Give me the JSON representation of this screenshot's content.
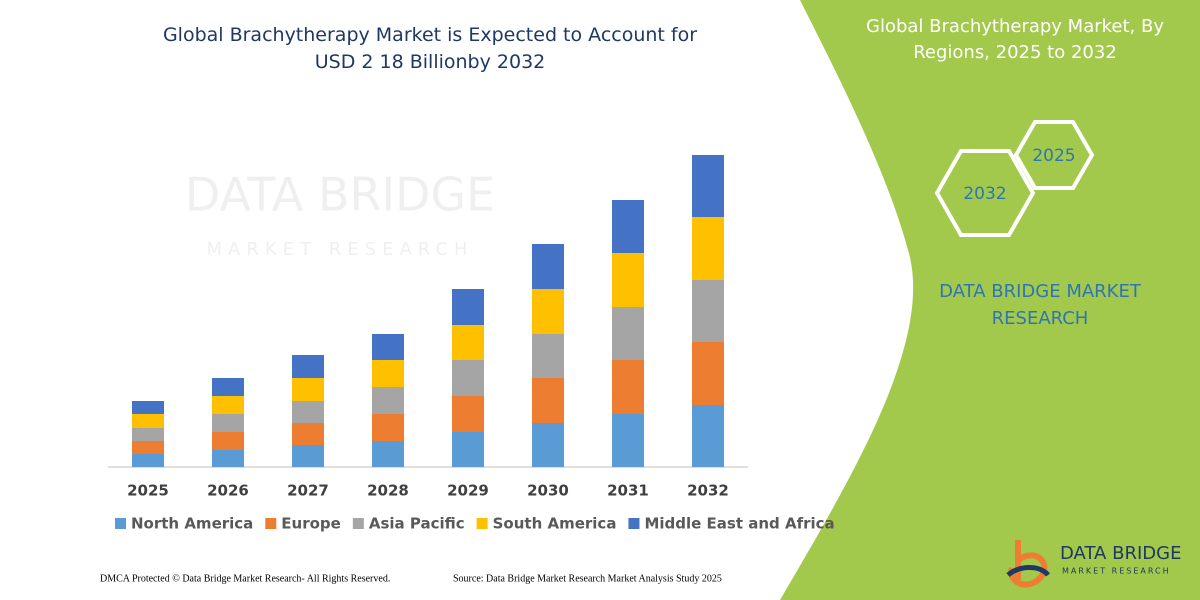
{
  "chart_data": {
    "type": "stacked_bar",
    "title": "Global Brachytherapy Market is Expected to Account for USD 2 18 Billionby 2032",
    "categories": [
      "2025",
      "2026",
      "2027",
      "2028",
      "2029",
      "2030",
      "2031",
      "2032"
    ],
    "series": [
      {
        "name": "North America",
        "color": "#5b9bd5",
        "values": [
          13,
          17,
          22,
          26,
          35,
          44,
          53,
          62
        ]
      },
      {
        "name": "Europe",
        "color": "#ed7d31",
        "values": [
          13,
          18,
          22,
          27,
          36,
          45,
          54,
          63
        ]
      },
      {
        "name": "Asia Pacific",
        "color": "#a5a5a5",
        "values": [
          13,
          18,
          22,
          27,
          36,
          44,
          53,
          62
        ]
      },
      {
        "name": "South America",
        "color": "#ffc000",
        "values": [
          14,
          18,
          23,
          27,
          35,
          45,
          54,
          63
        ]
      },
      {
        "name": "Middle East and Africa",
        "color": "#4472c4",
        "values": [
          13,
          18,
          23,
          26,
          36,
          45,
          53,
          62
        ]
      }
    ],
    "ylim": [
      0,
      320
    ]
  },
  "panel": {
    "title": "Global Brachytherapy Market, By Regions, 2025 to 2032",
    "hexagons": [
      "2025",
      "2032"
    ],
    "brand": "DATA BRIDGE MARKET RESEARCH"
  },
  "logo": {
    "name": "DATA BRIDGE",
    "tagline": "MARKET RESEARCH"
  },
  "footer": {
    "copyright": "DMCA Protected © Data Bridge Market Research- All Rights Reserved.",
    "source": "Source: Data Bridge Market Research Market Analysis Study 2025"
  }
}
